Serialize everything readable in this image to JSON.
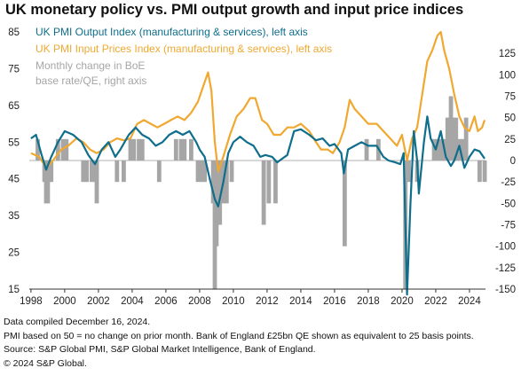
{
  "title": "UK monetary policy vs. PMI output growth and input price indices",
  "footer": [
    "Data compiled December 16, 2024.",
    "PMI based on 50 = no change on prior month. Bank of England £25bn QE shown as equivalent to 25 basis points.",
    "Source: S&P Global PMI, S&P Global Market Intelligence, Bank of England.",
    "© 2024 S&P Global."
  ],
  "colors": {
    "output": "#0e6e8c",
    "input": "#f0a830",
    "boe": "#a6a6a6"
  },
  "chart_data": {
    "type": "line",
    "x_range": [
      1997.9,
      2024.95
    ],
    "x_ticks": [
      "1998",
      "2000",
      "2002",
      "2004",
      "2006",
      "2008",
      "2010",
      "2012",
      "2014",
      "2016",
      "2018",
      "2020",
      "2022",
      "2024"
    ],
    "left_axis": {
      "ylim": [
        15,
        85
      ],
      "ticks": [
        "15",
        "25",
        "35",
        "45",
        "55",
        "65",
        "75",
        "85"
      ]
    },
    "right_axis": {
      "ylim": [
        -150,
        150
      ],
      "ticks": [
        "-150",
        "-125",
        "-100",
        "-75",
        "-50",
        "-25",
        "0",
        "25",
        "50",
        "75",
        "100",
        "125"
      ]
    },
    "series": [
      {
        "name": "UK PMI Output Index (manufacturing & services), left axis",
        "axis": "left",
        "type": "line",
        "points": [
          [
            1998.0,
            56
          ],
          [
            1998.3,
            57
          ],
          [
            1998.6,
            52
          ],
          [
            1998.9,
            47.5
          ],
          [
            1999.2,
            51
          ],
          [
            1999.6,
            55
          ],
          [
            2000.0,
            58
          ],
          [
            2000.5,
            57
          ],
          [
            2001.0,
            55
          ],
          [
            2001.4,
            51.5
          ],
          [
            2001.8,
            49
          ],
          [
            2002.2,
            53
          ],
          [
            2002.6,
            55
          ],
          [
            2003.0,
            51
          ],
          [
            2003.3,
            53
          ],
          [
            2003.8,
            57
          ],
          [
            2004.2,
            59
          ],
          [
            2004.6,
            57
          ],
          [
            2005.0,
            56
          ],
          [
            2005.4,
            54
          ],
          [
            2005.8,
            55
          ],
          [
            2006.2,
            57
          ],
          [
            2006.6,
            58
          ],
          [
            2007.0,
            57
          ],
          [
            2007.4,
            58
          ],
          [
            2007.8,
            55
          ],
          [
            2008.0,
            53
          ],
          [
            2008.3,
            51
          ],
          [
            2008.6,
            45
          ],
          [
            2008.9,
            39.5
          ],
          [
            2009.1,
            37.5
          ],
          [
            2009.4,
            44
          ],
          [
            2009.7,
            52
          ],
          [
            2010.0,
            55
          ],
          [
            2010.4,
            56.5
          ],
          [
            2010.8,
            55
          ],
          [
            2011.2,
            54
          ],
          [
            2011.6,
            51
          ],
          [
            2011.9,
            51.5
          ],
          [
            2012.3,
            51
          ],
          [
            2012.6,
            49.5
          ],
          [
            2012.9,
            50.5
          ],
          [
            2013.2,
            51.5
          ],
          [
            2013.6,
            58
          ],
          [
            2014.0,
            58.5
          ],
          [
            2014.5,
            57
          ],
          [
            2014.9,
            55.5
          ],
          [
            2015.3,
            56
          ],
          [
            2015.7,
            54
          ],
          [
            2016.0,
            54.5
          ],
          [
            2016.4,
            52
          ],
          [
            2016.55,
            46.5
          ],
          [
            2016.8,
            53
          ],
          [
            2017.2,
            54
          ],
          [
            2017.6,
            55
          ],
          [
            2018.0,
            54
          ],
          [
            2018.5,
            54
          ],
          [
            2018.9,
            51
          ],
          [
            2019.2,
            50
          ],
          [
            2019.6,
            49.5
          ],
          [
            2019.9,
            49
          ],
          [
            2020.1,
            52
          ],
          [
            2020.3,
            13.5
          ],
          [
            2020.5,
            38
          ],
          [
            2020.7,
            58
          ],
          [
            2020.9,
            50
          ],
          [
            2021.0,
            41
          ],
          [
            2021.3,
            55
          ],
          [
            2021.5,
            62
          ],
          [
            2021.7,
            56
          ],
          [
            2022.0,
            53
          ],
          [
            2022.3,
            58
          ],
          [
            2022.6,
            51
          ],
          [
            2022.9,
            48.5
          ],
          [
            2023.1,
            50
          ],
          [
            2023.4,
            54
          ],
          [
            2023.7,
            48
          ],
          [
            2024.0,
            51
          ],
          [
            2024.3,
            53
          ],
          [
            2024.6,
            52.5
          ],
          [
            2024.9,
            50.5
          ]
        ]
      },
      {
        "name": "UK PMI Input Prices Index (manufacturing & services), left axis",
        "axis": "left",
        "type": "line",
        "points": [
          [
            1998.0,
            52
          ],
          [
            1998.5,
            51
          ],
          [
            1998.9,
            48
          ],
          [
            1999.3,
            50
          ],
          [
            1999.8,
            53
          ],
          [
            2000.2,
            54
          ],
          [
            2000.7,
            56
          ],
          [
            2001.1,
            55
          ],
          [
            2001.5,
            53
          ],
          [
            2001.9,
            52
          ],
          [
            2002.3,
            53
          ],
          [
            2002.7,
            55
          ],
          [
            2003.1,
            56
          ],
          [
            2003.5,
            55.5
          ],
          [
            2003.9,
            56
          ],
          [
            2004.3,
            60
          ],
          [
            2004.7,
            61
          ],
          [
            2005.1,
            60
          ],
          [
            2005.5,
            59
          ],
          [
            2005.9,
            60
          ],
          [
            2006.3,
            61
          ],
          [
            2006.7,
            62
          ],
          [
            2007.1,
            61
          ],
          [
            2007.5,
            63
          ],
          [
            2007.9,
            66
          ],
          [
            2008.2,
            70
          ],
          [
            2008.5,
            74
          ],
          [
            2008.7,
            69
          ],
          [
            2008.9,
            55
          ],
          [
            2009.1,
            47
          ],
          [
            2009.4,
            51
          ],
          [
            2009.8,
            57
          ],
          [
            2010.2,
            62
          ],
          [
            2010.6,
            64
          ],
          [
            2011.0,
            67
          ],
          [
            2011.3,
            67
          ],
          [
            2011.7,
            61
          ],
          [
            2012.0,
            60
          ],
          [
            2012.4,
            57
          ],
          [
            2012.8,
            57
          ],
          [
            2013.2,
            59
          ],
          [
            2013.6,
            59
          ],
          [
            2014.0,
            60
          ],
          [
            2014.5,
            58
          ],
          [
            2014.9,
            55
          ],
          [
            2015.2,
            53
          ],
          [
            2015.6,
            53
          ],
          [
            2015.9,
            52
          ],
          [
            2016.3,
            55
          ],
          [
            2016.6,
            59
          ],
          [
            2016.9,
            66.5
          ],
          [
            2017.2,
            64
          ],
          [
            2017.6,
            62
          ],
          [
            2018.0,
            60
          ],
          [
            2018.5,
            60
          ],
          [
            2018.9,
            58
          ],
          [
            2019.3,
            56
          ],
          [
            2019.7,
            54
          ],
          [
            2020.0,
            57
          ],
          [
            2020.3,
            50
          ],
          [
            2020.6,
            56
          ],
          [
            2020.9,
            59
          ],
          [
            2021.2,
            68
          ],
          [
            2021.5,
            77
          ],
          [
            2021.8,
            80
          ],
          [
            2022.1,
            84
          ],
          [
            2022.3,
            85
          ],
          [
            2022.5,
            80
          ],
          [
            2022.8,
            75
          ],
          [
            2023.1,
            68
          ],
          [
            2023.4,
            62
          ],
          [
            2023.7,
            59
          ],
          [
            2024.0,
            58
          ],
          [
            2024.3,
            62
          ],
          [
            2024.5,
            58
          ],
          [
            2024.75,
            59
          ],
          [
            2024.9,
            61
          ]
        ]
      },
      {
        "name": "Monthly change in BoE base rate/QE, right axis",
        "axis": "right",
        "type": "bar",
        "bars": [
          [
            1998.4,
            25
          ],
          [
            1998.8,
            -25
          ],
          [
            1998.9,
            -50
          ],
          [
            1999.0,
            -50
          ],
          [
            1999.1,
            -25
          ],
          [
            1999.2,
            -25
          ],
          [
            1999.6,
            25
          ],
          [
            1999.9,
            25
          ],
          [
            2000.1,
            25
          ],
          [
            2001.1,
            -25
          ],
          [
            2001.3,
            -25
          ],
          [
            2001.6,
            -25
          ],
          [
            2001.8,
            -25
          ],
          [
            2001.9,
            -50
          ],
          [
            2003.1,
            -25
          ],
          [
            2003.5,
            -25
          ],
          [
            2003.9,
            25
          ],
          [
            2004.1,
            25
          ],
          [
            2004.4,
            25
          ],
          [
            2004.6,
            25
          ],
          [
            2005.6,
            -25
          ],
          [
            2006.6,
            25
          ],
          [
            2006.9,
            25
          ],
          [
            2007.1,
            25
          ],
          [
            2007.5,
            25
          ],
          [
            2007.9,
            -25
          ],
          [
            2008.1,
            -25
          ],
          [
            2008.3,
            -25
          ],
          [
            2008.8,
            -50
          ],
          [
            2008.9,
            -150
          ],
          [
            2009.0,
            -100
          ],
          [
            2009.1,
            -50
          ],
          [
            2009.2,
            -75
          ],
          [
            2009.4,
            -50
          ],
          [
            2009.6,
            -50
          ],
          [
            2009.9,
            -25
          ],
          [
            2011.8,
            -75
          ],
          [
            2012.1,
            -50
          ],
          [
            2012.5,
            -50
          ],
          [
            2016.6,
            -100
          ],
          [
            2017.9,
            25
          ],
          [
            2018.6,
            25
          ],
          [
            2020.2,
            -150
          ],
          [
            2020.4,
            -25
          ],
          [
            2020.9,
            -25
          ],
          [
            2021.9,
            25
          ],
          [
            2022.1,
            25
          ],
          [
            2022.2,
            25
          ],
          [
            2022.4,
            25
          ],
          [
            2022.5,
            25
          ],
          [
            2022.7,
            50
          ],
          [
            2022.8,
            50
          ],
          [
            2022.9,
            75
          ],
          [
            2023.0,
            50
          ],
          [
            2023.2,
            50
          ],
          [
            2023.4,
            25
          ],
          [
            2023.6,
            25
          ],
          [
            2023.8,
            50
          ],
          [
            2024.6,
            -25
          ],
          [
            2024.9,
            -25
          ]
        ]
      }
    ]
  }
}
